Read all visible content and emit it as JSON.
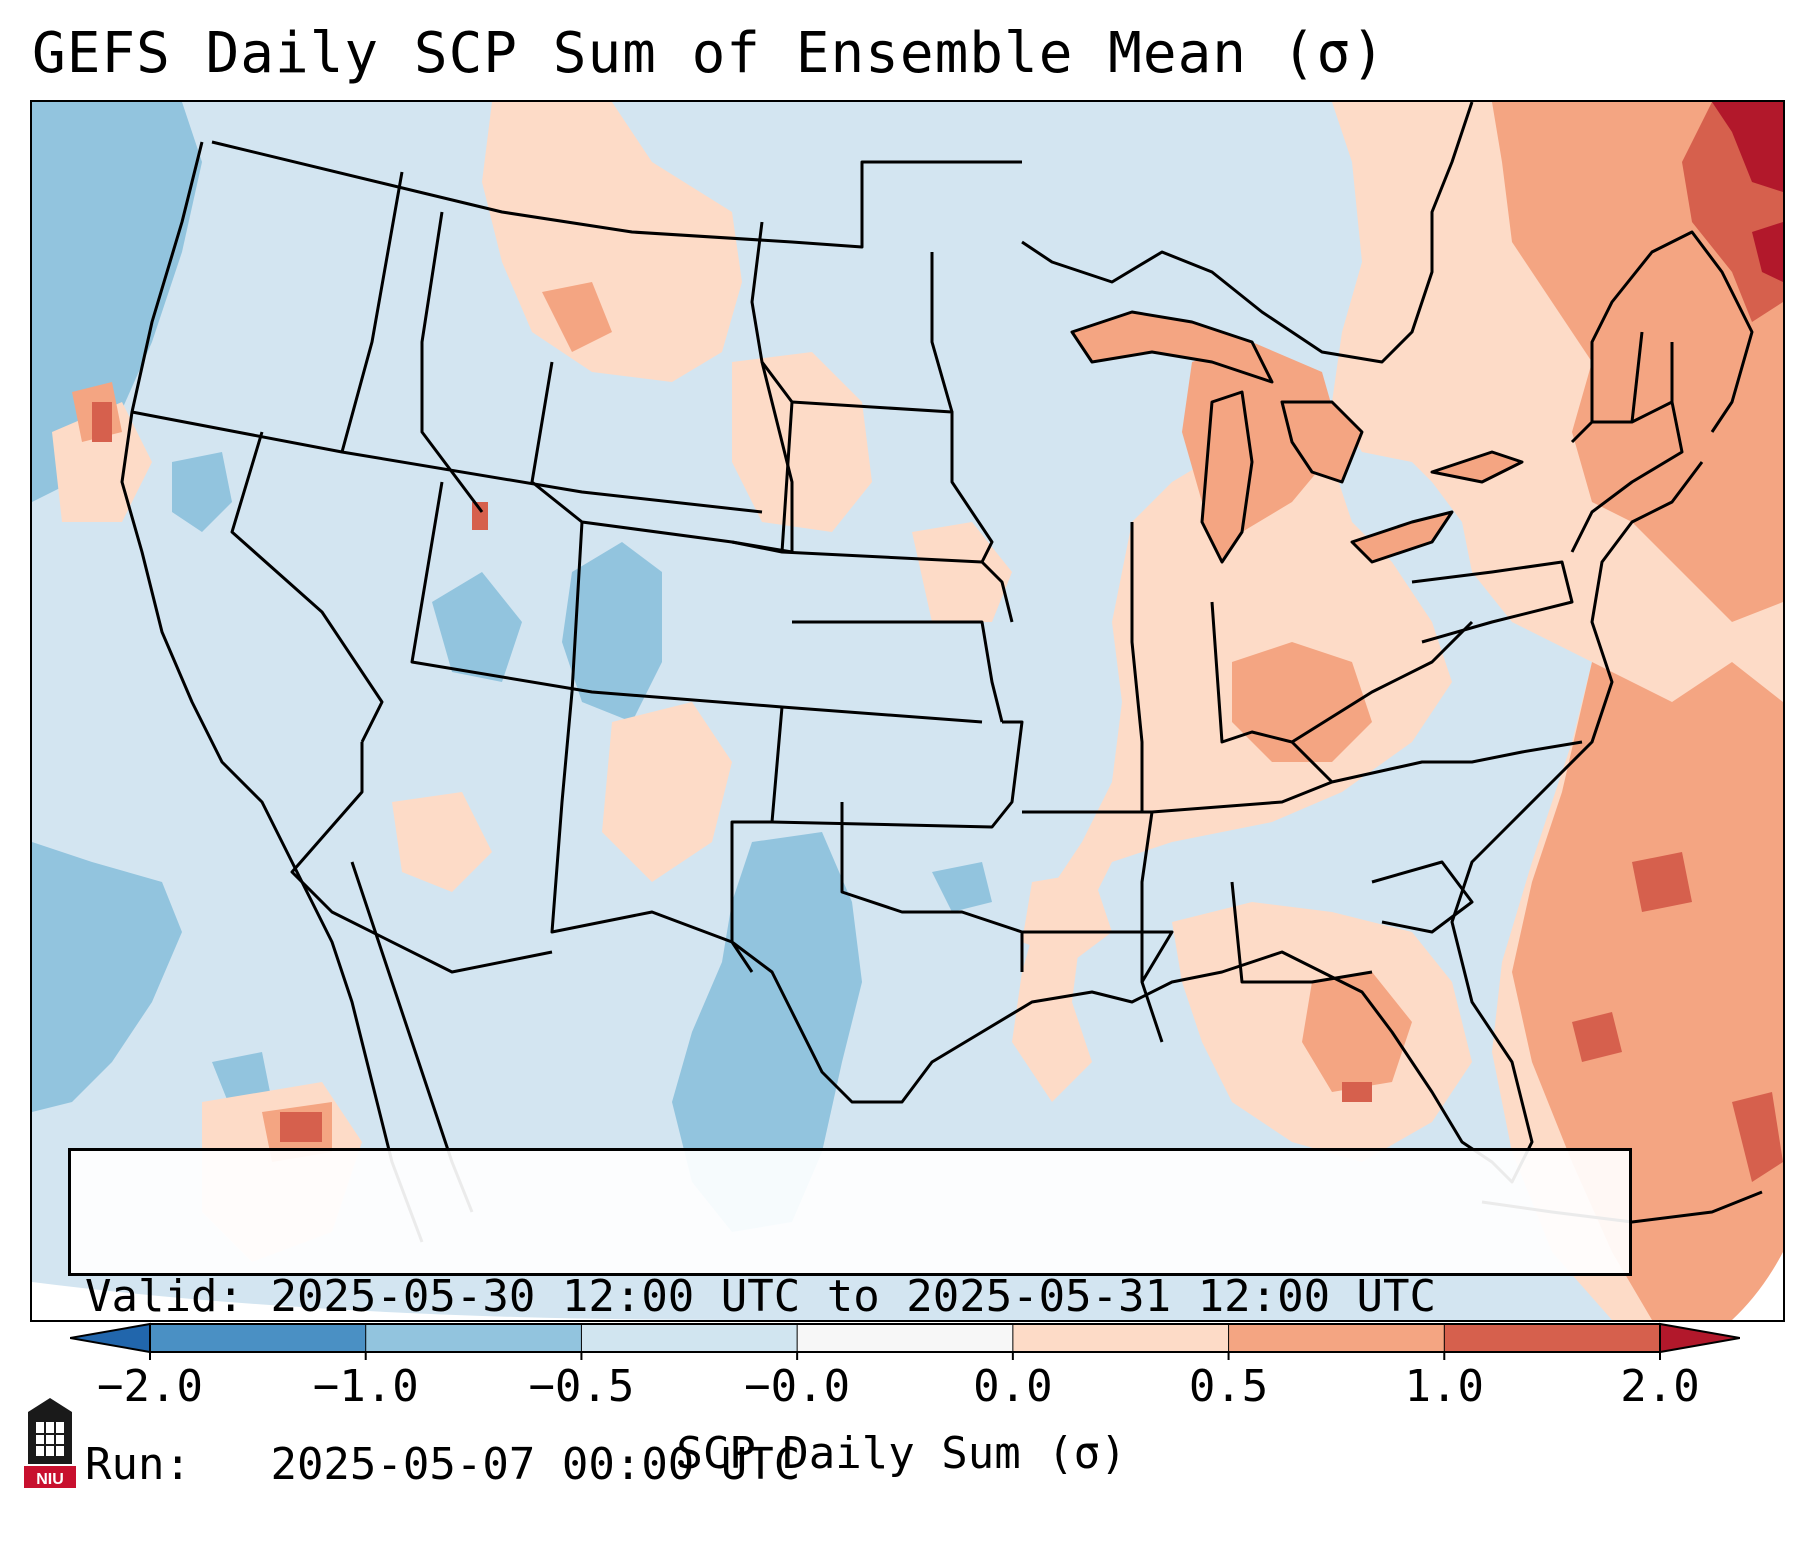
{
  "title": "GEFS Daily SCP Sum of Ensemble Mean (σ)",
  "info": {
    "valid_label": "Valid:",
    "valid_value": "2025-05-30 12:00 UTC to 2025-05-31 12:00 UTC",
    "run_label": "Run:",
    "run_value": "2025-05-07 00:00 UTC"
  },
  "colorbar": {
    "label": "SCP Daily Sum (σ)",
    "ticks": [
      "−2.0",
      "−1.0",
      "−0.5",
      "−0.0",
      "0.0",
      "0.5",
      "1.0",
      "2.0"
    ],
    "colors": [
      "#4a90c4",
      "#92c4de",
      "#d1e5f0",
      "#f7f7f7",
      "#fddbc7",
      "#f4a582",
      "#d6604d"
    ],
    "extend_low_color": "#2166ac",
    "extend_high_color": "#b2182b"
  },
  "map": {
    "projection": "CONUS Lambert Conformal",
    "variable": "SCP daily sum anomaly (σ)",
    "features": [
      "state boundaries",
      "country boundaries",
      "coastlines",
      "Great Lakes"
    ],
    "background_color": "#d3e5f1",
    "positive_color_light": "#fddbc7",
    "positive_color_mid": "#f4a582",
    "positive_color_high": "#d6604d",
    "positive_color_max": "#b2182b",
    "negative_color_mid": "#92c4de"
  },
  "logo": {
    "text": "NIU",
    "icon": "niu-tower-logo"
  }
}
